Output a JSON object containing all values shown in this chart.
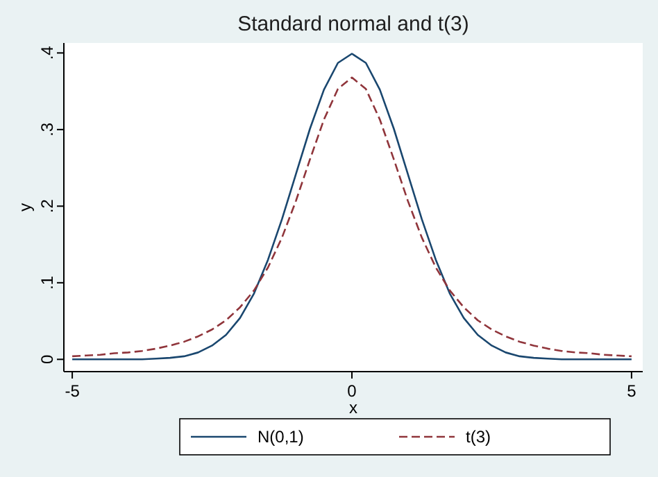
{
  "chart_data": {
    "type": "line",
    "title": "Standard normal and t(3)",
    "xlabel": "x",
    "ylabel": "y",
    "x": [
      -5,
      -4.75,
      -4.5,
      -4.25,
      -4,
      -3.75,
      -3.5,
      -3.25,
      -3,
      -2.75,
      -2.5,
      -2.25,
      -2,
      -1.75,
      -1.5,
      -1.25,
      -1,
      -0.75,
      -0.5,
      -0.25,
      0,
      0.25,
      0.5,
      0.75,
      1,
      1.25,
      1.5,
      1.75,
      2,
      2.25,
      2.5,
      2.75,
      3,
      3.25,
      3.5,
      3.75,
      4,
      4.25,
      4.5,
      4.75,
      5
    ],
    "series": [
      {
        "name": "N(0,1)",
        "color": "#1a476f",
        "line_style": "solid",
        "values": [
          0,
          0,
          0,
          0,
          0,
          0,
          0.001,
          0.002,
          0.004,
          0.009,
          0.018,
          0.032,
          0.054,
          0.086,
          0.13,
          0.183,
          0.242,
          0.301,
          0.352,
          0.387,
          0.399,
          0.387,
          0.352,
          0.301,
          0.242,
          0.183,
          0.13,
          0.086,
          0.054,
          0.032,
          0.018,
          0.009,
          0.004,
          0.002,
          0.001,
          0,
          0,
          0,
          0,
          0,
          0
        ]
      },
      {
        "name": "t(3)",
        "color": "#90353b",
        "line_style": "dashed",
        "values": [
          0.004,
          0.005,
          0.006,
          0.008,
          0.009,
          0.011,
          0.014,
          0.018,
          0.023,
          0.03,
          0.039,
          0.051,
          0.068,
          0.09,
          0.12,
          0.159,
          0.207,
          0.261,
          0.313,
          0.353,
          0.368,
          0.353,
          0.313,
          0.261,
          0.207,
          0.159,
          0.12,
          0.09,
          0.068,
          0.051,
          0.039,
          0.03,
          0.023,
          0.018,
          0.014,
          0.011,
          0.009,
          0.008,
          0.006,
          0.005,
          0.004
        ]
      }
    ],
    "xlim": [
      -5.15,
      5.2
    ],
    "ylim": [
      -0.016,
      0.413
    ],
    "xticks": [
      -5,
      0,
      5
    ],
    "yticks": [
      0,
      {
        "value": 0.1,
        "label": ".1"
      },
      {
        "value": 0.2,
        "label": ".2"
      },
      {
        "value": 0.3,
        "label": ".3"
      },
      {
        "value": 0.4,
        "label": ".4"
      }
    ],
    "grid": false,
    "legend": "bottom",
    "marker": "none"
  }
}
